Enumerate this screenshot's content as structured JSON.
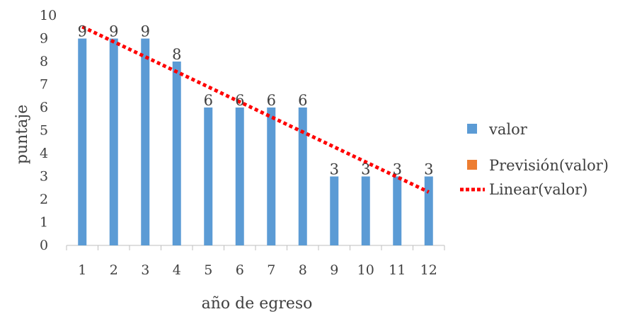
{
  "chart_data": {
    "type": "bar",
    "title": "",
    "xlabel": "año de egreso",
    "ylabel": "puntaje",
    "categories": [
      "1",
      "2",
      "3",
      "4",
      "5",
      "6",
      "7",
      "8",
      "9",
      "10",
      "11",
      "12"
    ],
    "series": [
      {
        "name": "valor",
        "values": [
          9,
          9,
          9,
          8,
          6,
          6,
          6,
          6,
          3,
          3,
          3,
          3
        ],
        "color": "#5b9bd5"
      }
    ],
    "yticks": [
      "0",
      "1",
      "2",
      "3",
      "4",
      "5",
      "6",
      "7",
      "8",
      "9",
      "10"
    ],
    "ylim": [
      0,
      10
    ],
    "grid": false,
    "trendline": {
      "type": "linear",
      "series": "valor",
      "color": "#ff0000",
      "style": "dotted"
    },
    "legend": {
      "position": "right",
      "entries": [
        {
          "label": "valor",
          "color": "#5b9bd5",
          "kind": "square"
        },
        {
          "label": "Previsión(valor)",
          "color": "#ed7d31",
          "kind": "square"
        },
        {
          "label": "Linear(valor)",
          "color": "#ff0000",
          "kind": "dotted-line"
        }
      ]
    }
  }
}
